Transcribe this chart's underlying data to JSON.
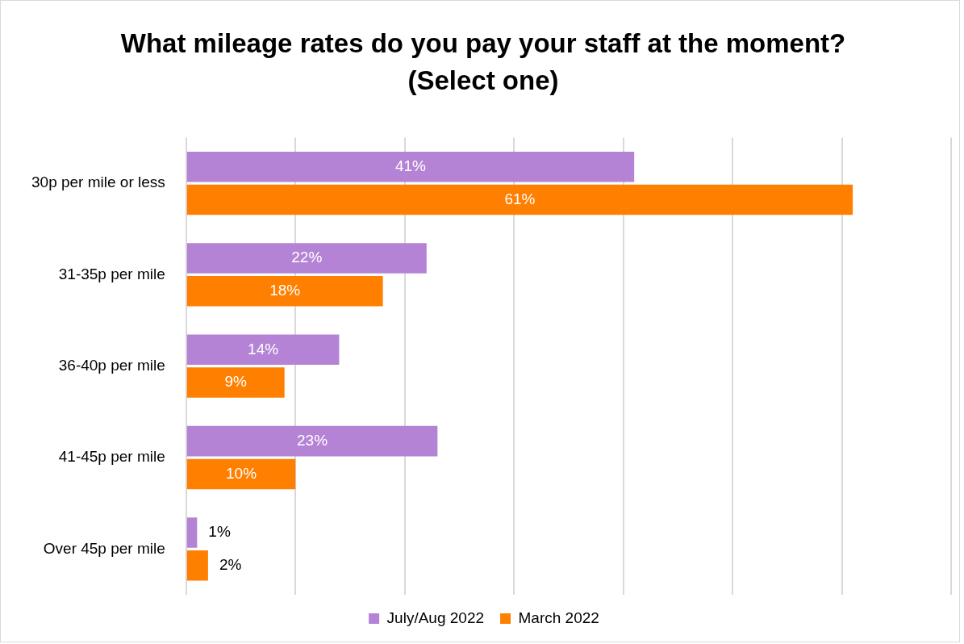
{
  "chart_data": {
    "type": "bar",
    "orientation": "horizontal",
    "title": "What mileage rates do you pay your staff at the moment? (Select one)",
    "categories": [
      "30p per mile or less",
      "31-35p per mile",
      "36-40p per mile",
      "41-45p per mile",
      "Over 45p per mile"
    ],
    "series": [
      {
        "name": "July/Aug 2022",
        "color": "#b583d5",
        "values": [
          41,
          22,
          14,
          23,
          1
        ],
        "value_labels": [
          "41%",
          "22%",
          "14%",
          "23%",
          "1%"
        ]
      },
      {
        "name": "March 2022",
        "color": "#ff7f00",
        "values": [
          61,
          18,
          9,
          10,
          2
        ],
        "value_labels": [
          "61%",
          "18%",
          "9%",
          "10%",
          "2%"
        ]
      }
    ],
    "grid": "x",
    "tick_labels": "y",
    "legend": "bottom"
  }
}
